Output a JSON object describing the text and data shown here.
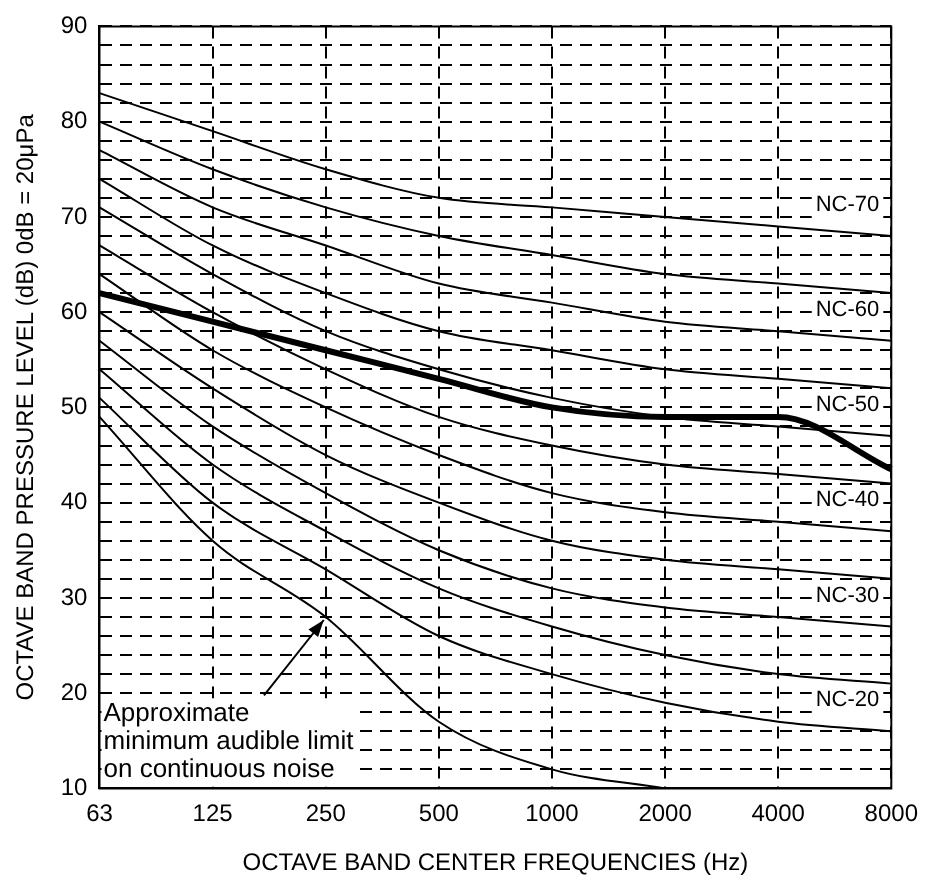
{
  "chart_data": {
    "type": "line",
    "xlabel": "OCTAVE BAND CENTER FREQUENCIES (Hz)",
    "ylabel": "OCTAVE BAND PRESSURE LEVEL (dB) 0dB = 20μPa",
    "categories": [
      "63",
      "125",
      "250",
      "500",
      "1000",
      "2000",
      "4000",
      "8000"
    ],
    "ylim": [
      10,
      90
    ],
    "yticks": [
      10,
      {
        "value": 12,
        "label": null
      },
      {
        "value": 14,
        "label": null
      },
      {
        "value": 16,
        "label": null
      },
      {
        "value": 18,
        "label": null
      },
      20,
      {
        "value": 22,
        "label": null
      },
      {
        "value": 24,
        "label": null
      },
      {
        "value": 26,
        "label": null
      },
      {
        "value": 28,
        "label": null
      },
      30,
      {
        "value": 32,
        "label": null
      },
      {
        "value": 34,
        "label": null
      },
      {
        "value": 36,
        "label": null
      },
      {
        "value": 38,
        "label": null
      },
      40,
      {
        "value": 42,
        "label": null
      },
      {
        "value": 44,
        "label": null
      },
      {
        "value": 46,
        "label": null
      },
      {
        "value": 48,
        "label": null
      },
      50,
      {
        "value": 52,
        "label": null
      },
      {
        "value": 54,
        "label": null
      },
      {
        "value": 56,
        "label": null
      },
      {
        "value": 58,
        "label": null
      },
      60,
      {
        "value": 62,
        "label": null
      },
      {
        "value": 64,
        "label": null
      },
      {
        "value": 66,
        "label": null
      },
      {
        "value": 68,
        "label": null
      },
      70,
      {
        "value": 72,
        "label": null
      },
      {
        "value": 74,
        "label": null
      },
      {
        "value": 76,
        "label": null
      },
      {
        "value": 78,
        "label": null
      },
      80,
      {
        "value": 82,
        "label": null
      },
      {
        "value": 84,
        "label": null
      },
      {
        "value": 86,
        "label": null
      },
      {
        "value": 88,
        "label": null
      },
      90
    ],
    "grid": true,
    "legend": false,
    "marker": "none",
    "line_style": "solid",
    "series": [
      {
        "name": "NC-70",
        "color": "#000000",
        "values": [
          83,
          79,
          75,
          72,
          71,
          70,
          69,
          68
        ]
      },
      {
        "color": "#000000",
        "values": [
          80,
          75,
          71,
          68,
          66,
          64,
          63,
          62
        ]
      },
      {
        "name": "NC-60",
        "color": "#000000",
        "values": [
          77,
          71,
          67,
          63,
          61,
          59,
          58,
          57
        ]
      },
      {
        "color": "#000000",
        "values": [
          74,
          67,
          62,
          58,
          56,
          54,
          53,
          52
        ]
      },
      {
        "name": "NC-50",
        "color": "#000000",
        "values": [
          71,
          64,
          58,
          54,
          51,
          49,
          48,
          47
        ]
      },
      {
        "color": "#000000",
        "values": [
          67,
          60,
          54,
          49,
          46,
          44,
          43,
          42
        ]
      },
      {
        "name": "NC-40",
        "color": "#000000",
        "values": [
          64,
          56,
          50,
          45,
          41,
          39,
          38,
          37
        ]
      },
      {
        "color": "#000000",
        "values": [
          60,
          52,
          45,
          40,
          36,
          34,
          33,
          32
        ]
      },
      {
        "name": "NC-30",
        "color": "#000000",
        "values": [
          57,
          48,
          41,
          35,
          31,
          29,
          28,
          27
        ]
      },
      {
        "color": "#000000",
        "values": [
          54,
          44,
          37,
          31,
          27,
          24,
          22,
          21
        ]
      },
      {
        "name": "NC-20",
        "color": "#000000",
        "values": [
          51,
          40,
          33,
          26,
          22,
          19,
          17,
          16
        ]
      },
      {
        "color": "#000000",
        "values": [
          49,
          36,
          28,
          17,
          12,
          10,
          null,
          null
        ]
      },
      {
        "type": "line",
        "color": "#000000",
        "values": [
          62,
          59,
          56,
          53,
          50,
          49,
          49,
          43.5
        ]
      }
    ],
    "annotations": [
      {
        "text": "Approximate minimum audible limit on continuous noise",
        "x": "250",
        "y": 28
      }
    ]
  }
}
